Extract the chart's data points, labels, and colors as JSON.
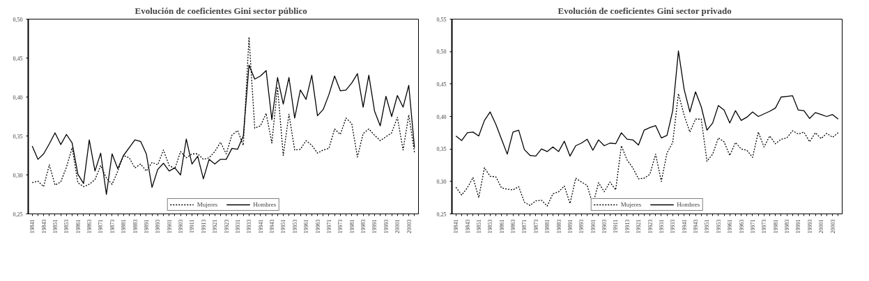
{
  "chart_data": [
    {
      "type": "line",
      "title": "Evolución de coeficientes Gini  sector  público",
      "categories": [
        "19841",
        null,
        "19843",
        null,
        "19851",
        null,
        "19853",
        null,
        "19861",
        null,
        "19863",
        null,
        "19871",
        null,
        "19873",
        null,
        "19881",
        null,
        "19883",
        null,
        "19891",
        null,
        "19893",
        null,
        "19901",
        null,
        "19903",
        null,
        "19911",
        null,
        "19913",
        null,
        "19921",
        null,
        "19923",
        null,
        "19931",
        null,
        "19933",
        null,
        "19941",
        null,
        "19943",
        null,
        "19951",
        null,
        "19953",
        null,
        "19961",
        null,
        "19963",
        null,
        "19971",
        null,
        "19973",
        null,
        "19981",
        null,
        "19983",
        null,
        "19991",
        null,
        "19993",
        null,
        "20001",
        null,
        "20003",
        null
      ],
      "series": [
        {
          "name": "Mujeres",
          "color": "#000000",
          "line_style": "dotted",
          "values": [
            0.29,
            0.292,
            0.285,
            0.313,
            0.287,
            0.291,
            0.31,
            0.335,
            0.29,
            0.285,
            0.288,
            0.294,
            0.312,
            0.296,
            0.288,
            0.305,
            0.325,
            0.322,
            0.309,
            0.314,
            0.305,
            0.316,
            0.313,
            0.332,
            0.312,
            0.308,
            0.33,
            0.322,
            0.327,
            0.327,
            0.32,
            0.322,
            0.33,
            0.342,
            0.327,
            0.351,
            0.357,
            0.338,
            0.477,
            0.36,
            0.363,
            0.379,
            0.341,
            0.413,
            0.325,
            0.378,
            0.332,
            0.333,
            0.344,
            0.338,
            0.328,
            0.332,
            0.334,
            0.359,
            0.352,
            0.373,
            0.366,
            0.323,
            0.353,
            0.359,
            0.351,
            0.344,
            0.349,
            0.354,
            0.374,
            0.332,
            0.377,
            0.329
          ]
        },
        {
          "name": "Hombres",
          "color": "#000000",
          "line_style": "solid",
          "values": [
            0.337,
            0.32,
            0.327,
            0.34,
            0.354,
            0.339,
            0.352,
            0.341,
            0.301,
            0.289,
            0.345,
            0.305,
            0.328,
            0.275,
            0.327,
            0.308,
            0.325,
            0.335,
            0.345,
            0.343,
            0.327,
            0.284,
            0.307,
            0.315,
            0.305,
            0.309,
            0.3,
            0.346,
            0.314,
            0.324,
            0.295,
            0.32,
            0.314,
            0.32,
            0.32,
            0.334,
            0.333,
            0.35,
            0.441,
            0.423,
            0.427,
            0.434,
            0.371,
            0.425,
            0.391,
            0.425,
            0.373,
            0.409,
            0.397,
            0.428,
            0.376,
            0.384,
            0.403,
            0.427,
            0.408,
            0.409,
            0.418,
            0.43,
            0.387,
            0.428,
            0.382,
            0.363,
            0.401,
            0.375,
            0.402,
            0.387,
            0.415,
            0.335
          ]
        }
      ],
      "ylim": [
        0.25,
        0.5
      ],
      "yticks": [
        {
          "value": 0.25,
          "label": "0,25"
        },
        {
          "value": 0.3,
          "label": "0,30"
        },
        {
          "value": 0.35,
          "label": "0,35"
        },
        {
          "value": 0.4,
          "label": "0,40"
        },
        {
          "value": 0.45,
          "label": "0,45"
        },
        {
          "value": 0.5,
          "label": "0,50"
        }
      ],
      "grid": false,
      "legend": "bottom",
      "marker": "none"
    },
    {
      "type": "line",
      "title": "Evolución de coeficientes Gini  sector  privado",
      "categories": [
        "19841",
        null,
        "19843",
        null,
        "19851",
        null,
        "19853",
        null,
        "19861",
        null,
        "19863",
        null,
        "19871",
        null,
        "19873",
        null,
        "19881",
        null,
        "19883",
        null,
        "19891",
        null,
        "19893",
        null,
        "19901",
        null,
        "19903",
        null,
        "19911",
        null,
        "19913",
        null,
        "19921",
        null,
        "19923",
        null,
        "19931",
        null,
        "19933",
        null,
        "19941",
        null,
        "19943",
        null,
        "19951",
        null,
        "19953",
        null,
        "19961",
        null,
        "19963",
        null,
        "19971",
        null,
        "19973",
        null,
        "19981",
        null,
        "19983",
        null,
        "19991",
        null,
        "19993",
        null,
        "20001",
        null,
        "20003",
        null
      ],
      "series": [
        {
          "name": "Mujeres",
          "color": "#000000",
          "line_style": "dotted",
          "values": [
            0.291,
            0.279,
            0.29,
            0.306,
            0.275,
            0.321,
            0.308,
            0.307,
            0.29,
            0.288,
            0.287,
            0.292,
            0.268,
            0.263,
            0.27,
            0.271,
            0.262,
            0.281,
            0.284,
            0.293,
            0.266,
            0.305,
            0.299,
            0.294,
            0.264,
            0.298,
            0.284,
            0.299,
            0.287,
            0.355,
            0.333,
            0.321,
            0.304,
            0.305,
            0.311,
            0.342,
            0.3,
            0.344,
            0.36,
            0.435,
            0.402,
            0.376,
            0.396,
            0.396,
            0.331,
            0.342,
            0.367,
            0.361,
            0.34,
            0.36,
            0.35,
            0.348,
            0.337,
            0.376,
            0.353,
            0.37,
            0.358,
            0.365,
            0.367,
            0.378,
            0.373,
            0.376,
            0.361,
            0.375,
            0.366,
            0.374,
            0.368,
            0.375
          ]
        },
        {
          "name": "Hombres",
          "color": "#000000",
          "line_style": "solid",
          "values": [
            0.37,
            0.363,
            0.375,
            0.376,
            0.37,
            0.394,
            0.407,
            0.388,
            0.365,
            0.342,
            0.376,
            0.379,
            0.349,
            0.34,
            0.339,
            0.35,
            0.346,
            0.353,
            0.346,
            0.362,
            0.339,
            0.355,
            0.359,
            0.365,
            0.348,
            0.364,
            0.355,
            0.359,
            0.358,
            0.375,
            0.365,
            0.364,
            0.356,
            0.379,
            0.383,
            0.386,
            0.367,
            0.371,
            0.409,
            0.501,
            0.442,
            0.407,
            0.438,
            0.415,
            0.379,
            0.39,
            0.417,
            0.41,
            0.39,
            0.409,
            0.394,
            0.399,
            0.407,
            0.4,
            0.404,
            0.408,
            0.413,
            0.43,
            0.431,
            0.432,
            0.41,
            0.409,
            0.397,
            0.406,
            0.403,
            0.4,
            0.403,
            0.396
          ]
        }
      ],
      "ylim": [
        0.25,
        0.55
      ],
      "yticks": [
        {
          "value": 0.25,
          "label": "0,25"
        },
        {
          "value": 0.3,
          "label": "0,30"
        },
        {
          "value": 0.35,
          "label": "0,35"
        },
        {
          "value": 0.4,
          "label": "0,40"
        },
        {
          "value": 0.45,
          "label": "0,45"
        },
        {
          "value": 0.5,
          "label": "0,50"
        },
        {
          "value": 0.55,
          "label": "0,55"
        }
      ],
      "grid": false,
      "legend": "bottom",
      "marker": "none"
    }
  ]
}
